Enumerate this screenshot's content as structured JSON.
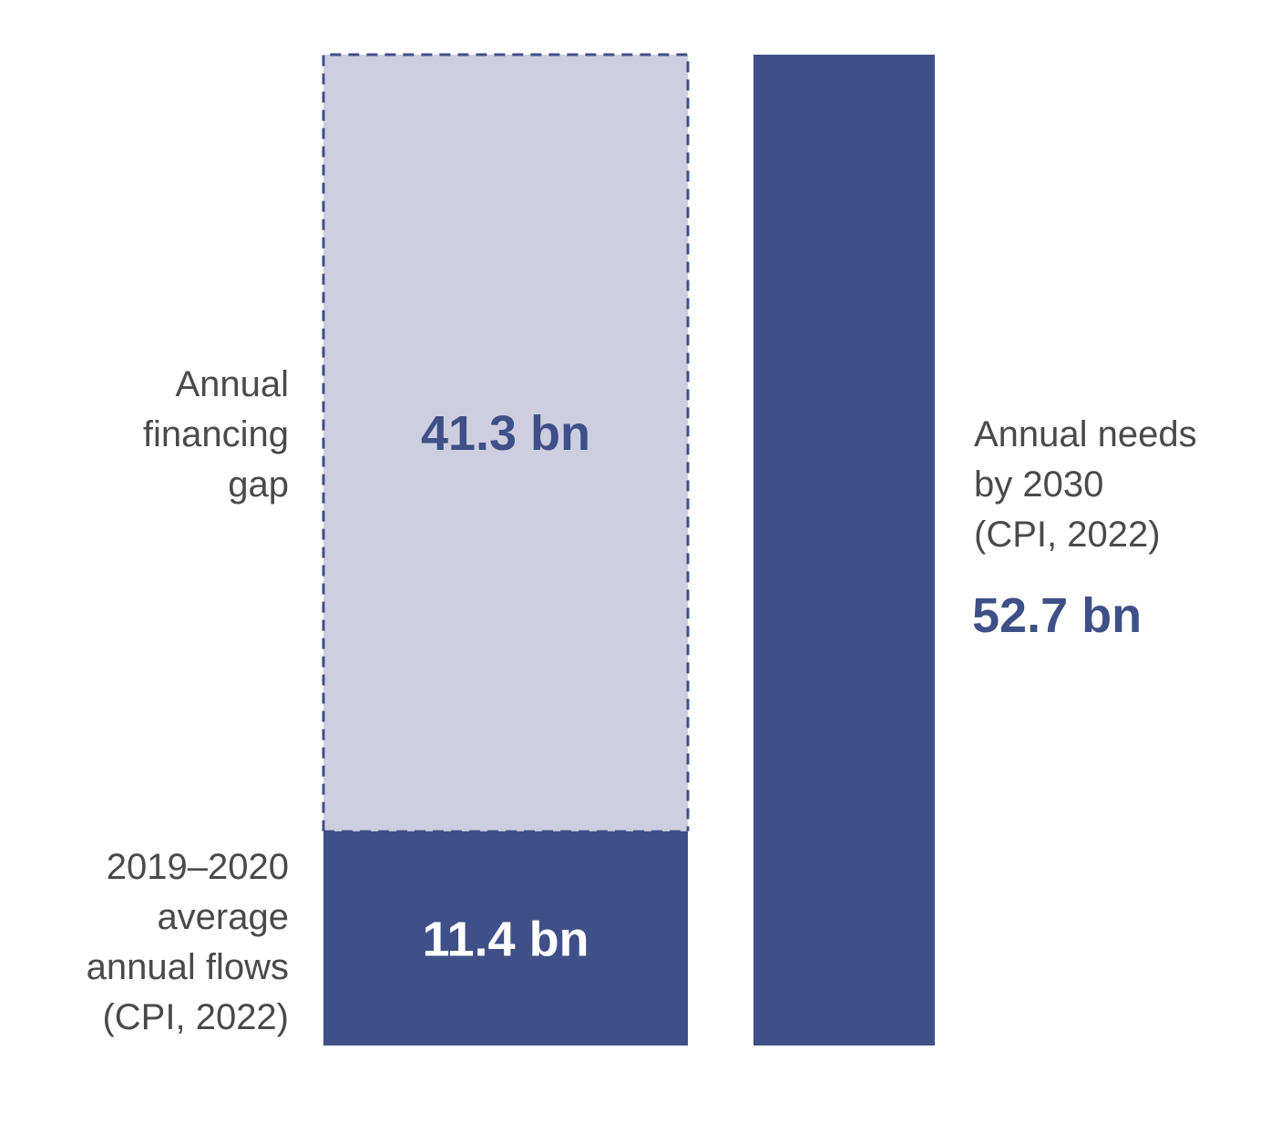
{
  "colors": {
    "dark_navy": "#3f4f87",
    "light_lavender": "#cdcfe1",
    "label_text": "#4a4a4a",
    "dashed_border": "#3f4f87"
  },
  "chart_data": {
    "type": "bar",
    "stacking": "stacked",
    "unit": "bn",
    "ylim": [
      0,
      52.7
    ],
    "grid": false,
    "axes_visible": false,
    "bars": [
      {
        "segments": [
          {
            "value": 11.4,
            "value_label": "11.4 bn",
            "side_label": [
              "2019–2020",
              "average",
              "annual flows",
              "(CPI, 2022)"
            ],
            "fill": "dark_navy",
            "style": "solid"
          },
          {
            "value": 41.3,
            "value_label": "41.3 bn",
            "side_label": [
              "Annual",
              "financing",
              "gap"
            ],
            "fill": "light_lavender",
            "style": "dashed-border"
          }
        ]
      },
      {
        "segments": [
          {
            "value": 52.7,
            "value_label": "52.7 bn",
            "side_label": [
              "Annual needs",
              "by 2030",
              "(CPI, 2022)"
            ],
            "fill": "dark_navy",
            "style": "solid"
          }
        ]
      }
    ]
  }
}
